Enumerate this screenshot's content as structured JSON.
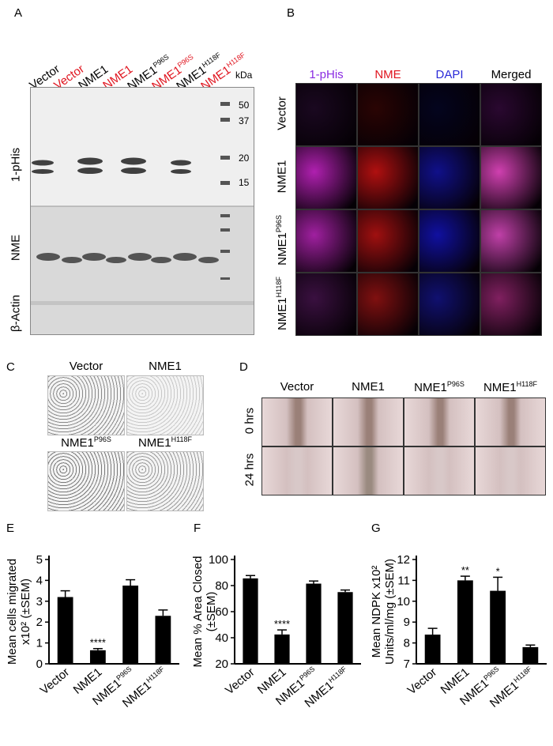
{
  "panels": {
    "A": "A",
    "B": "B",
    "C": "C",
    "D": "D",
    "E": "E",
    "F": "F",
    "G": "G"
  },
  "panelA": {
    "lanes": [
      {
        "base": "Vector",
        "sup": "",
        "color": "#000000"
      },
      {
        "base": "Vector",
        "sup": "",
        "color": "#e0141e"
      },
      {
        "base": "NME1",
        "sup": "",
        "color": "#000000"
      },
      {
        "base": "NME1",
        "sup": "",
        "color": "#e0141e"
      },
      {
        "base": "NME1",
        "sup": "P96S",
        "color": "#000000"
      },
      {
        "base": "NME1",
        "sup": "P96S",
        "color": "#e0141e"
      },
      {
        "base": "NME1",
        "sup": "H118F",
        "color": "#000000"
      },
      {
        "base": "NME1",
        "sup": "H118F",
        "color": "#e0141e"
      }
    ],
    "kda_label": "kDa",
    "markers": [
      "50",
      "37",
      "20",
      "15"
    ],
    "row_labels": {
      "phis": "1-pHis",
      "nme": "NME",
      "actin": "β-Actin"
    }
  },
  "panelB": {
    "columns": [
      "1-pHis",
      "NME",
      "DAPI",
      "Merged"
    ],
    "column_colors": [
      "#8a2be2",
      "#e0141e",
      "#2a2ad8",
      "#000000"
    ],
    "rows": [
      {
        "base": "Vector",
        "sup": ""
      },
      {
        "base": "NME1",
        "sup": ""
      },
      {
        "base": "NME1",
        "sup": "P96S"
      },
      {
        "base": "NME1",
        "sup": "H118F"
      }
    ]
  },
  "panelC": {
    "labels": [
      {
        "base": "Vector",
        "sup": ""
      },
      {
        "base": "NME1",
        "sup": ""
      },
      {
        "base": "NME1",
        "sup": "P96S"
      },
      {
        "base": "NME1",
        "sup": "H118F"
      }
    ]
  },
  "panelD": {
    "columns": [
      {
        "base": "Vector",
        "sup": ""
      },
      {
        "base": "NME1",
        "sup": ""
      },
      {
        "base": "NME1",
        "sup": "P96S"
      },
      {
        "base": "NME1",
        "sup": "H118F"
      }
    ],
    "rows": [
      "0 hrs",
      "24 hrs"
    ]
  },
  "chart_data": [
    {
      "type": "bar",
      "panel": "E",
      "categories": [
        "Vector",
        "NME1",
        "NME1P96S",
        "NME1H118F"
      ],
      "category_labels": [
        {
          "base": "Vector",
          "sup": ""
        },
        {
          "base": "NME1",
          "sup": ""
        },
        {
          "base": "NME1",
          "sup": "P96S"
        },
        {
          "base": "NME1",
          "sup": "H118F"
        }
      ],
      "values": [
        3.2,
        0.65,
        3.75,
        2.3
      ],
      "errors": [
        0.3,
        0.08,
        0.28,
        0.28
      ],
      "significance": [
        "",
        "****",
        "",
        ""
      ],
      "ylabel_lines": [
        "Mean  cells migrated",
        "x10² (±SEM)"
      ],
      "ylim": [
        0,
        5
      ],
      "yticks": [
        0,
        1,
        2,
        3,
        4,
        5
      ]
    },
    {
      "type": "bar",
      "panel": "F",
      "categories": [
        "Vector",
        "NME1",
        "NME1P96S",
        "NME1H118F"
      ],
      "category_labels": [
        {
          "base": "Vector",
          "sup": ""
        },
        {
          "base": "NME1",
          "sup": ""
        },
        {
          "base": "NME1",
          "sup": "P96S"
        },
        {
          "base": "NME1",
          "sup": "H118F"
        }
      ],
      "values": [
        85.5,
        42.5,
        81.5,
        75
      ],
      "errors": [
        2.2,
        3.5,
        2.0,
        1.6
      ],
      "significance": [
        "",
        "****",
        "",
        ""
      ],
      "ylabel_lines": [
        "Mean % Area Closed",
        "(±SEM)"
      ],
      "ylim": [
        20,
        100
      ],
      "yticks": [
        20,
        40,
        60,
        80,
        100
      ]
    },
    {
      "type": "bar",
      "panel": "G",
      "categories": [
        "Vector",
        "NME1",
        "NME1P96S",
        "NME1H118F"
      ],
      "category_labels": [
        {
          "base": "Vector",
          "sup": ""
        },
        {
          "base": "NME1",
          "sup": ""
        },
        {
          "base": "NME1",
          "sup": "P96S"
        },
        {
          "base": "NME1",
          "sup": "H118F"
        }
      ],
      "values": [
        8.4,
        11.0,
        10.5,
        7.8
      ],
      "errors": [
        0.3,
        0.2,
        0.65,
        0.1
      ],
      "significance": [
        "",
        "**",
        "*",
        ""
      ],
      "ylabel_lines": [
        "Mean NDPK x10²",
        "Units/ml/mg (±SEM)"
      ],
      "ylim": [
        7,
        12
      ],
      "yticks": [
        7,
        8,
        9,
        10,
        11,
        12
      ]
    }
  ]
}
